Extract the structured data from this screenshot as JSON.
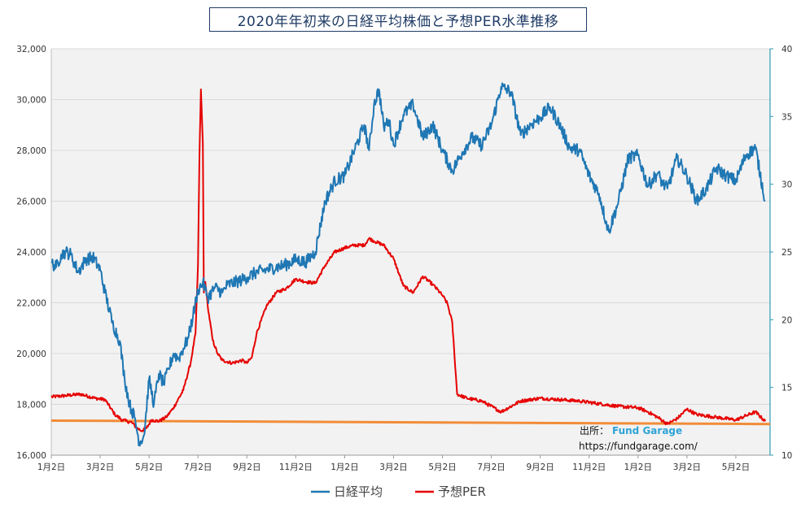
{
  "chart_data": {
    "type": "line",
    "title": "2020年年初来の日経平均株価と予想PER水準推移",
    "x_tick_labels": [
      "1月2日",
      "3月2日",
      "5月2日",
      "7月2日",
      "9月2日",
      "11月2日",
      "1月2日",
      "3月2日",
      "5月2日",
      "7月2日",
      "9月2日",
      "11月2日",
      "1月2日",
      "3月2日",
      "5月2日"
    ],
    "y_left": {
      "range": [
        16000,
        32000
      ],
      "ticks": [
        "16,000",
        "18,000",
        "20,000",
        "22,000",
        "24,000",
        "26,000",
        "28,000",
        "30,000",
        "32,000"
      ]
    },
    "y_right": {
      "range": [
        10,
        40
      ],
      "ticks": [
        "10",
        "15",
        "20",
        "25",
        "30",
        "35",
        "40"
      ]
    },
    "grid": true,
    "legend_position": "bottom",
    "series": [
      {
        "name": "日経平均",
        "axis": "left",
        "color": "#1f77b4",
        "x": [
          0,
          0.1,
          0.2,
          0.3,
          0.4,
          0.55,
          0.7,
          0.85,
          1.0,
          1.1,
          1.25,
          1.4,
          1.5,
          1.6,
          1.7,
          1.8,
          1.9,
          2.0,
          2.1,
          2.2,
          2.3,
          2.4,
          2.5,
          2.6,
          2.7,
          2.8,
          2.9,
          3.0,
          3.1,
          3.2,
          3.35,
          3.5,
          3.6,
          3.75,
          3.9,
          4.0,
          4.2,
          4.4,
          4.6,
          4.8,
          5.0,
          5.2,
          5.4,
          5.6,
          5.8,
          6.0,
          6.2,
          6.4,
          6.5,
          6.6,
          6.7,
          6.8,
          6.9,
          7.0,
          7.2,
          7.4,
          7.6,
          7.8,
          8.0,
          8.2,
          8.4,
          8.6,
          8.8,
          9.0,
          9.2,
          9.4,
          9.6,
          9.8,
          10.0,
          10.2,
          10.4,
          10.6,
          10.8,
          11.0,
          11.2,
          11.4,
          11.6,
          11.8,
          12.0,
          12.2,
          12.4,
          12.5,
          12.6,
          12.8,
          13.0,
          13.2,
          13.4,
          13.6,
          13.8,
          14.0,
          14.2,
          14.4,
          14.6
        ],
        "values": [
          23600,
          23400,
          23900,
          24000,
          23900,
          23200,
          23700,
          23800,
          23300,
          22400,
          21200,
          20500,
          19000,
          18000,
          17500,
          16500,
          16800,
          19000,
          18000,
          19200,
          18800,
          19400,
          20000,
          19800,
          20200,
          20600,
          21500,
          22500,
          22800,
          22200,
          22600,
          22400,
          22700,
          22800,
          22900,
          23000,
          23200,
          23300,
          23400,
          23500,
          23700,
          23600,
          24000,
          26000,
          26800,
          27000,
          28000,
          29000,
          28000,
          29800,
          30400,
          28900,
          29200,
          28200,
          29400,
          29800,
          28500,
          29000,
          28000,
          27200,
          27900,
          28500,
          28200,
          29000,
          30500,
          30300,
          28600,
          29000,
          29300,
          29700,
          29000,
          28100,
          28000,
          27000,
          26300,
          24800,
          26000,
          27700,
          27800,
          26600,
          27100,
          26700,
          26500,
          27700,
          27000,
          26000,
          26500,
          27300,
          27000,
          26800,
          27800,
          28100,
          26000
        ],
        "noise": 250
      },
      {
        "name": "予想PER",
        "axis": "right",
        "color": "#e60000",
        "x": [
          0,
          0.3,
          0.6,
          0.9,
          1.1,
          1.3,
          1.45,
          1.55,
          1.65,
          1.75,
          1.85,
          1.95,
          2.05,
          2.2,
          2.35,
          2.5,
          2.7,
          2.85,
          2.95,
          3.0,
          3.03,
          3.06,
          3.1,
          3.12,
          3.15,
          3.2,
          3.3,
          3.4,
          3.5,
          3.7,
          3.9,
          4.0,
          4.1,
          4.2,
          4.4,
          4.6,
          4.8,
          5.0,
          5.2,
          5.4,
          5.6,
          5.8,
          6.0,
          6.2,
          6.4,
          6.5,
          6.6,
          6.8,
          7.0,
          7.2,
          7.4,
          7.6,
          7.8,
          8.0,
          8.1,
          8.2,
          8.3,
          8.5,
          8.8,
          9.2,
          9.6,
          10.0,
          10.4,
          10.8,
          11.2,
          11.6,
          12.0,
          12.2,
          12.4,
          12.6,
          12.8,
          13.0,
          13.2,
          13.6,
          14.0,
          14.2,
          14.4,
          14.6
        ],
        "values": [
          14.3,
          14.4,
          14.5,
          14.2,
          14.1,
          13.0,
          12.6,
          12.5,
          12.4,
          12.0,
          11.8,
          12.0,
          12.6,
          12.5,
          12.8,
          13.5,
          14.8,
          16.8,
          19.0,
          24.0,
          32.0,
          37.0,
          33.0,
          22.0,
          22.8,
          21.0,
          18.5,
          17.5,
          17.0,
          16.8,
          17.0,
          16.8,
          17.2,
          19.0,
          21.0,
          22.0,
          22.3,
          23.0,
          22.8,
          22.7,
          24.0,
          25.0,
          25.3,
          25.5,
          25.5,
          26.0,
          25.8,
          25.5,
          24.5,
          22.5,
          22.0,
          23.2,
          22.6,
          21.8,
          21.2,
          19.8,
          14.5,
          14.2,
          14.0,
          13.2,
          14.0,
          14.2,
          14.1,
          14.0,
          13.8,
          13.6,
          13.5,
          13.2,
          12.8,
          12.3,
          12.7,
          13.4,
          13.0,
          12.8,
          12.6,
          12.9,
          13.2,
          12.5
        ],
        "noise": 0.12
      },
      {
        "name": "",
        "axis": "right",
        "color": "#f28c38",
        "x": [
          0,
          14.7
        ],
        "values": [
          12.55,
          12.3
        ],
        "noise": 0
      }
    ]
  },
  "source": {
    "label": "出所：",
    "name": "Fund Garage",
    "url": "https://fundgarage.com/"
  }
}
